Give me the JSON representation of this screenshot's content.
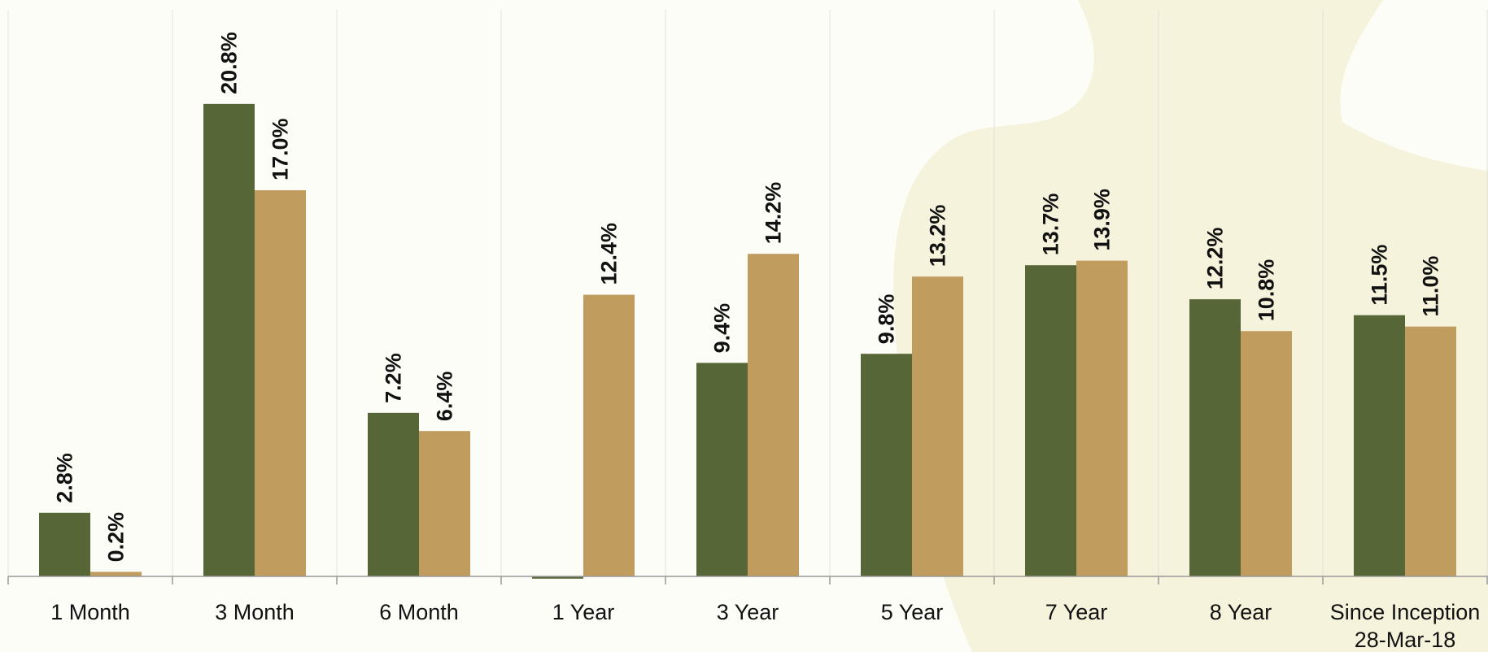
{
  "chart_data": {
    "type": "bar",
    "categories": [
      [
        "1 Month"
      ],
      [
        "3 Month"
      ],
      [
        "6 Month"
      ],
      [
        "1 Year"
      ],
      [
        "3 Year"
      ],
      [
        "5 Year"
      ],
      [
        "7 Year"
      ],
      [
        "8 Year"
      ],
      [
        "Since Inception",
        "28-Mar-18"
      ]
    ],
    "series": [
      {
        "color": "#576636",
        "values": [
          2.8,
          20.8,
          7.2,
          -0.1,
          9.4,
          9.8,
          13.7,
          12.2,
          11.5
        ],
        "labels": [
          "2.8%",
          "20.8%",
          "7.2%",
          "",
          "9.4%",
          "9.8%",
          "13.7%",
          "12.2%",
          "11.5%"
        ]
      },
      {
        "color": "#c09c5f",
        "values": [
          0.2,
          17.0,
          6.4,
          12.4,
          14.2,
          13.2,
          13.9,
          10.8,
          11.0
        ],
        "labels": [
          "0.2%",
          "17.0%",
          "6.4%",
          "12.4%",
          "14.2%",
          "13.2%",
          "13.9%",
          "10.8%",
          "11.0%"
        ]
      }
    ],
    "ylim": [
      0,
      25
    ],
    "grid": "vertical-separators",
    "legend": "none",
    "colors": {
      "background": "#fdfdf8",
      "watermark": "#f6f3dc",
      "axis": "#9a9a9a",
      "separator": "#e2e2dc"
    }
  }
}
